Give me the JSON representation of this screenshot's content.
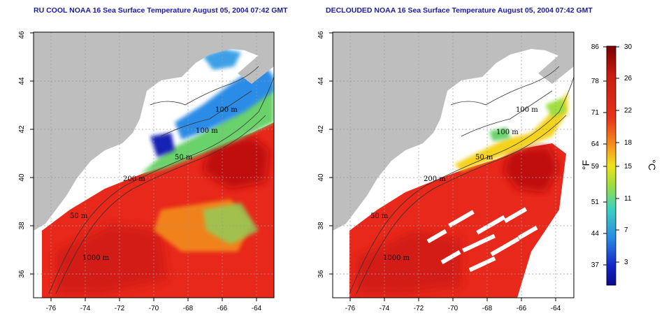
{
  "panels": [
    {
      "title": "RU COOL NOAA 16 Sea Surface Temperature August 05, 2004 07:42 GMT",
      "contour_labels": [
        "100 m",
        "100 m",
        "50 m",
        "200 m",
        "50 m",
        "1000 m"
      ]
    },
    {
      "title": "DECLOUDED NOAA 16 Sea Surface Temperature August 05, 2004 07:42 GMT",
      "contour_labels": [
        "100 m",
        "100 m",
        "50 m",
        "200 m",
        "50 m",
        "1000 m"
      ]
    }
  ],
  "axes": {
    "x_ticks": [
      "-76",
      "-74",
      "-72",
      "-70",
      "-68",
      "-66",
      "-64"
    ],
    "y_ticks": [
      "36",
      "38",
      "40",
      "42",
      "44",
      "46"
    ]
  },
  "colorbar": {
    "fahrenheit_ticks": [
      "86",
      "78",
      "71",
      "64",
      "59",
      "51",
      "44",
      "37"
    ],
    "celsius_ticks": [
      "30",
      "26",
      "22",
      "18",
      "15",
      "11",
      "7",
      "3"
    ],
    "fahrenheit_unit": "°F",
    "celsius_unit": "°C"
  },
  "colors": {
    "land": "#bebebe",
    "cloud": "#ffffff",
    "warm": "#e8281a",
    "hot": "#c81810",
    "mid": "#f5b81a",
    "cool": "#6ad26a",
    "cold": "#2a8ce6",
    "coldest": "#1424b4",
    "title": "#1a1aa6"
  }
}
